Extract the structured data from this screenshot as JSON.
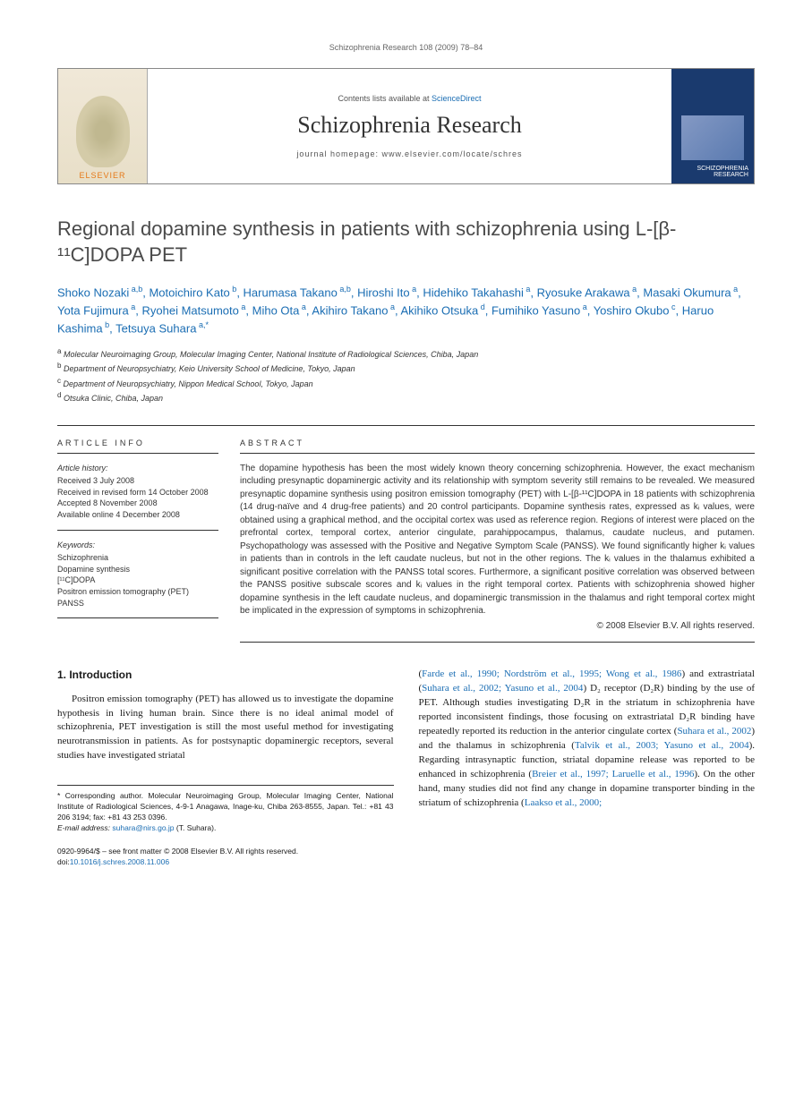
{
  "header": {
    "citation": "Schizophrenia Research 108 (2009) 78–84"
  },
  "masthead": {
    "logo_label": "ELSEVIER",
    "contents_prefix": "Contents lists available at ",
    "contents_link": "ScienceDirect",
    "journal_name": "Schizophrenia Research",
    "homepage_prefix": "journal homepage: ",
    "homepage_url": "www.elsevier.com/locate/schres",
    "cover_text": "SCHIZOPHRENIA RESEARCH"
  },
  "article": {
    "title": "Regional dopamine synthesis in patients with schizophrenia using L-[β-¹¹C]DOPA PET",
    "authors": [
      {
        "name": "Shoko Nozaki",
        "aff": "a,b"
      },
      {
        "name": "Motoichiro Kato",
        "aff": "b"
      },
      {
        "name": "Harumasa Takano",
        "aff": "a,b"
      },
      {
        "name": "Hiroshi Ito",
        "aff": "a"
      },
      {
        "name": "Hidehiko Takahashi",
        "aff": "a"
      },
      {
        "name": "Ryosuke Arakawa",
        "aff": "a"
      },
      {
        "name": "Masaki Okumura",
        "aff": "a"
      },
      {
        "name": "Yota Fujimura",
        "aff": "a"
      },
      {
        "name": "Ryohei Matsumoto",
        "aff": "a"
      },
      {
        "name": "Miho Ota",
        "aff": "a"
      },
      {
        "name": "Akihiro Takano",
        "aff": "a"
      },
      {
        "name": "Akihiko Otsuka",
        "aff": "d"
      },
      {
        "name": "Fumihiko Yasuno",
        "aff": "a"
      },
      {
        "name": "Yoshiro Okubo",
        "aff": "c"
      },
      {
        "name": "Haruo Kashima",
        "aff": "b"
      },
      {
        "name": "Tetsuya Suhara",
        "aff": "a,*"
      }
    ],
    "affiliations": [
      {
        "key": "a",
        "text": "Molecular Neuroimaging Group, Molecular Imaging Center, National Institute of Radiological Sciences, Chiba, Japan"
      },
      {
        "key": "b",
        "text": "Department of Neuropsychiatry, Keio University School of Medicine, Tokyo, Japan"
      },
      {
        "key": "c",
        "text": "Department of Neuropsychiatry, Nippon Medical School, Tokyo, Japan"
      },
      {
        "key": "d",
        "text": "Otsuka Clinic, Chiba, Japan"
      }
    ]
  },
  "info": {
    "label": "ARTICLE INFO",
    "history_label": "Article history:",
    "history": [
      "Received 3 July 2008",
      "Received in revised form 14 October 2008",
      "Accepted 8 November 2008",
      "Available online 4 December 2008"
    ],
    "keywords_label": "Keywords:",
    "keywords": [
      "Schizophrenia",
      "Dopamine synthesis",
      "[¹¹C]DOPA",
      "Positron emission tomography (PET)",
      "PANSS"
    ]
  },
  "abstract": {
    "label": "ABSTRACT",
    "text": "The dopamine hypothesis has been the most widely known theory concerning schizophrenia. However, the exact mechanism including presynaptic dopaminergic activity and its relationship with symptom severity still remains to be revealed. We measured presynaptic dopamine synthesis using positron emission tomography (PET) with L-[β-¹¹C]DOPA in 18 patients with schizophrenia (14 drug-naïve and 4 drug-free patients) and 20 control participants. Dopamine synthesis rates, expressed as kᵢ values, were obtained using a graphical method, and the occipital cortex was used as reference region. Regions of interest were placed on the prefrontal cortex, temporal cortex, anterior cingulate, parahippocampus, thalamus, caudate nucleus, and putamen. Psychopathology was assessed with the Positive and Negative Symptom Scale (PANSS). We found significantly higher kᵢ values in patients than in controls in the left caudate nucleus, but not in the other regions. The kᵢ values in the thalamus exhibited a significant positive correlation with the PANSS total scores. Furthermore, a significant positive correlation was observed between the PANSS positive subscale scores and kᵢ values in the right temporal cortex. Patients with schizophrenia showed higher dopamine synthesis in the left caudate nucleus, and dopaminergic transmission in the thalamus and right temporal cortex might be implicated in the expression of symptoms in schizophrenia.",
    "copyright": "© 2008 Elsevier B.V. All rights reserved."
  },
  "body": {
    "section_heading": "1. Introduction",
    "col1_p1": "Positron emission tomography (PET) has allowed us to investigate the dopamine hypothesis in living human brain. Since there is no ideal animal model of schizophrenia, PET investigation is still the most useful method for investigating neurotransmission in patients. As for postsynaptic dopaminergic receptors, several studies have investigated striatal",
    "col2_p1_pre": "(",
    "col2_ref1": "Farde et al., 1990; Nordström et al., 1995; Wong et al., 1986",
    "col2_p1_mid1": ") and extrastriatal (",
    "col2_ref2": "Suhara et al., 2002; Yasuno et al., 2004",
    "col2_p1_mid2": ") D₂ receptor (D₂R) binding by the use of PET. Although studies investigating D₂R in the striatum in schizophrenia have reported inconsistent findings, those focusing on extrastriatal D₂R binding have repeatedly reported its reduction in the anterior cingulate cortex (",
    "col2_ref3": "Suhara et al., 2002",
    "col2_p1_mid3": ") and the thalamus in schizophrenia (",
    "col2_ref4": "Talvik et al., 2003; Yasuno et al., 2004",
    "col2_p1_mid4": "). Regarding intrasynaptic function, striatal dopamine release was reported to be enhanced in schizophrenia (",
    "col2_ref5": "Breier et al., 1997; Laruelle et al., 1996",
    "col2_p1_mid5": "). On the other hand, many studies did not find any change in dopamine transporter binding in the striatum of schizophrenia (",
    "col2_ref6": "Laakso et al., 2000;"
  },
  "footnote": {
    "corr": "* Corresponding author. Molecular Neuroimaging Group, Molecular Imaging Center, National Institute of Radiological Sciences, 4-9-1 Anagawa, Inage-ku, Chiba 263-8555, Japan. Tel.: +81 43 206 3194; fax: +81 43 253 0396.",
    "email_label": "E-mail address: ",
    "email": "suhara@nirs.go.jp",
    "email_suffix": " (T. Suhara)."
  },
  "footer": {
    "line1": "0920-9964/$ – see front matter © 2008 Elsevier B.V. All rights reserved.",
    "doi_label": "doi:",
    "doi": "10.1016/j.schres.2008.11.006"
  },
  "colors": {
    "link": "#1a6db3",
    "text": "#1a1a1a",
    "rule": "#333333",
    "elsevier_orange": "#e67817",
    "cover_bg": "#1a3a6e"
  }
}
